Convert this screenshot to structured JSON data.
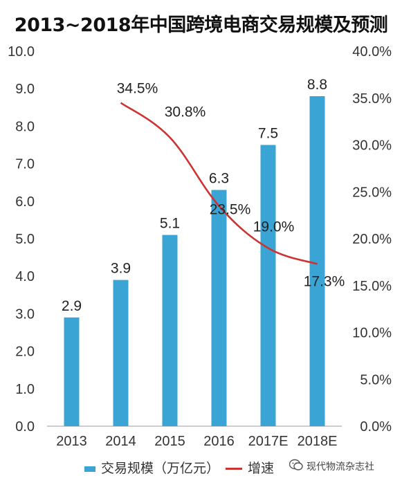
{
  "title": "2013~2018年中国跨境电商交易规模及预测",
  "colors": {
    "bar": "#3aa4d4",
    "line": "#cc3333"
  },
  "watermark": "现代物流杂志社",
  "chart_data": {
    "type": "bar",
    "categories": [
      "2013",
      "2014",
      "2015",
      "2016",
      "2017E",
      "2018E"
    ],
    "series": [
      {
        "name": "交易规模（万亿元）",
        "type": "bar",
        "axis": "left",
        "values": [
          2.9,
          3.9,
          5.1,
          6.3,
          7.5,
          8.8
        ],
        "labels": [
          "2.9",
          "3.9",
          "5.1",
          "6.3",
          "7.5",
          "8.8"
        ]
      },
      {
        "name": "增速",
        "type": "line",
        "axis": "right",
        "values": [
          null,
          34.5,
          30.8,
          23.5,
          19.0,
          17.3
        ],
        "labels": [
          "",
          "34.5%",
          "30.8%",
          "23.5%",
          "19.0%",
          "17.3%"
        ]
      }
    ],
    "y_left": {
      "min": 0,
      "max": 10,
      "ticks": [
        "0.0",
        "1.0",
        "2.0",
        "3.0",
        "4.0",
        "5.0",
        "6.0",
        "7.0",
        "8.0",
        "9.0",
        "10.0"
      ]
    },
    "y_right": {
      "min": 0,
      "max": 40,
      "ticks": [
        "0.0%",
        "5.0%",
        "10.0%",
        "15.0%",
        "20.0%",
        "25.0%",
        "30.0%",
        "35.0%",
        "40.0%"
      ]
    },
    "grid": false,
    "legend_position": "bottom"
  }
}
